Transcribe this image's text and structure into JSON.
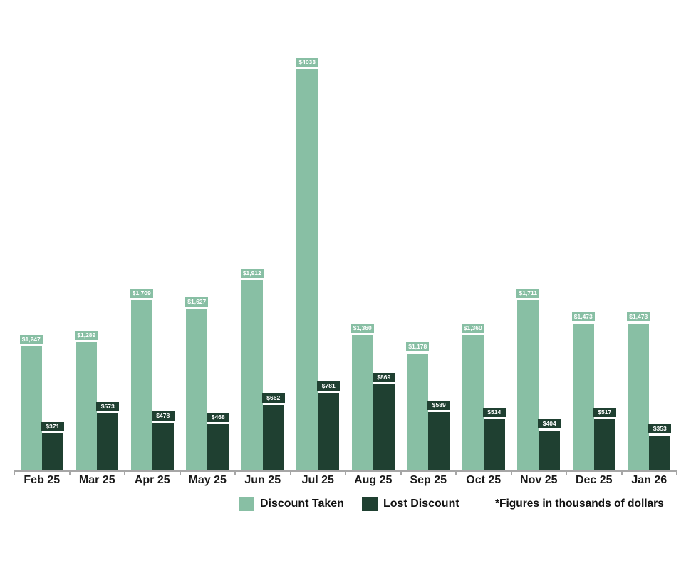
{
  "chart_data": {
    "type": "bar",
    "title": "",
    "categories": [
      "Feb 25",
      "Mar 25",
      "Apr 25",
      "May 25",
      "Jun 25",
      "Jul 25",
      "Aug 25",
      "Sep 25",
      "Oct 25",
      "Nov 25",
      "Dec 25",
      "Jan 26"
    ],
    "series": [
      {
        "name": "Discount Taken",
        "color": "#88BFA4",
        "values": [
          1247,
          1289,
          1709,
          1627,
          1912,
          4033,
          1360,
          1178,
          1360,
          1711,
          1473,
          1473
        ],
        "data_labels": [
          "$1,247",
          "$1,289",
          "$1,709",
          "$1,627",
          "$1,912",
          "$4033",
          "$1,360",
          "$1,178",
          "$1,360",
          "$1,711",
          "$1,473",
          "$1,473"
        ]
      },
      {
        "name": "Lost Discount",
        "color": "#1F4031",
        "values": [
          371,
          573,
          478,
          468,
          662,
          781,
          869,
          589,
          514,
          404,
          517,
          353
        ],
        "data_labels": [
          "$371",
          "$573",
          "$478",
          "$468",
          "$662",
          "$781",
          "$869",
          "$589",
          "$514",
          "$404",
          "$517",
          "$353"
        ]
      }
    ],
    "ylim": [
      0,
      4033
    ],
    "grid": false,
    "y_axis_visible": false,
    "legend_position": "bottom",
    "note": "*Figures in thousands of dollars",
    "units": "thousands of dollars",
    "axis_color": "#A6A6A6",
    "data_label_text_color": "#FFFFFF"
  }
}
